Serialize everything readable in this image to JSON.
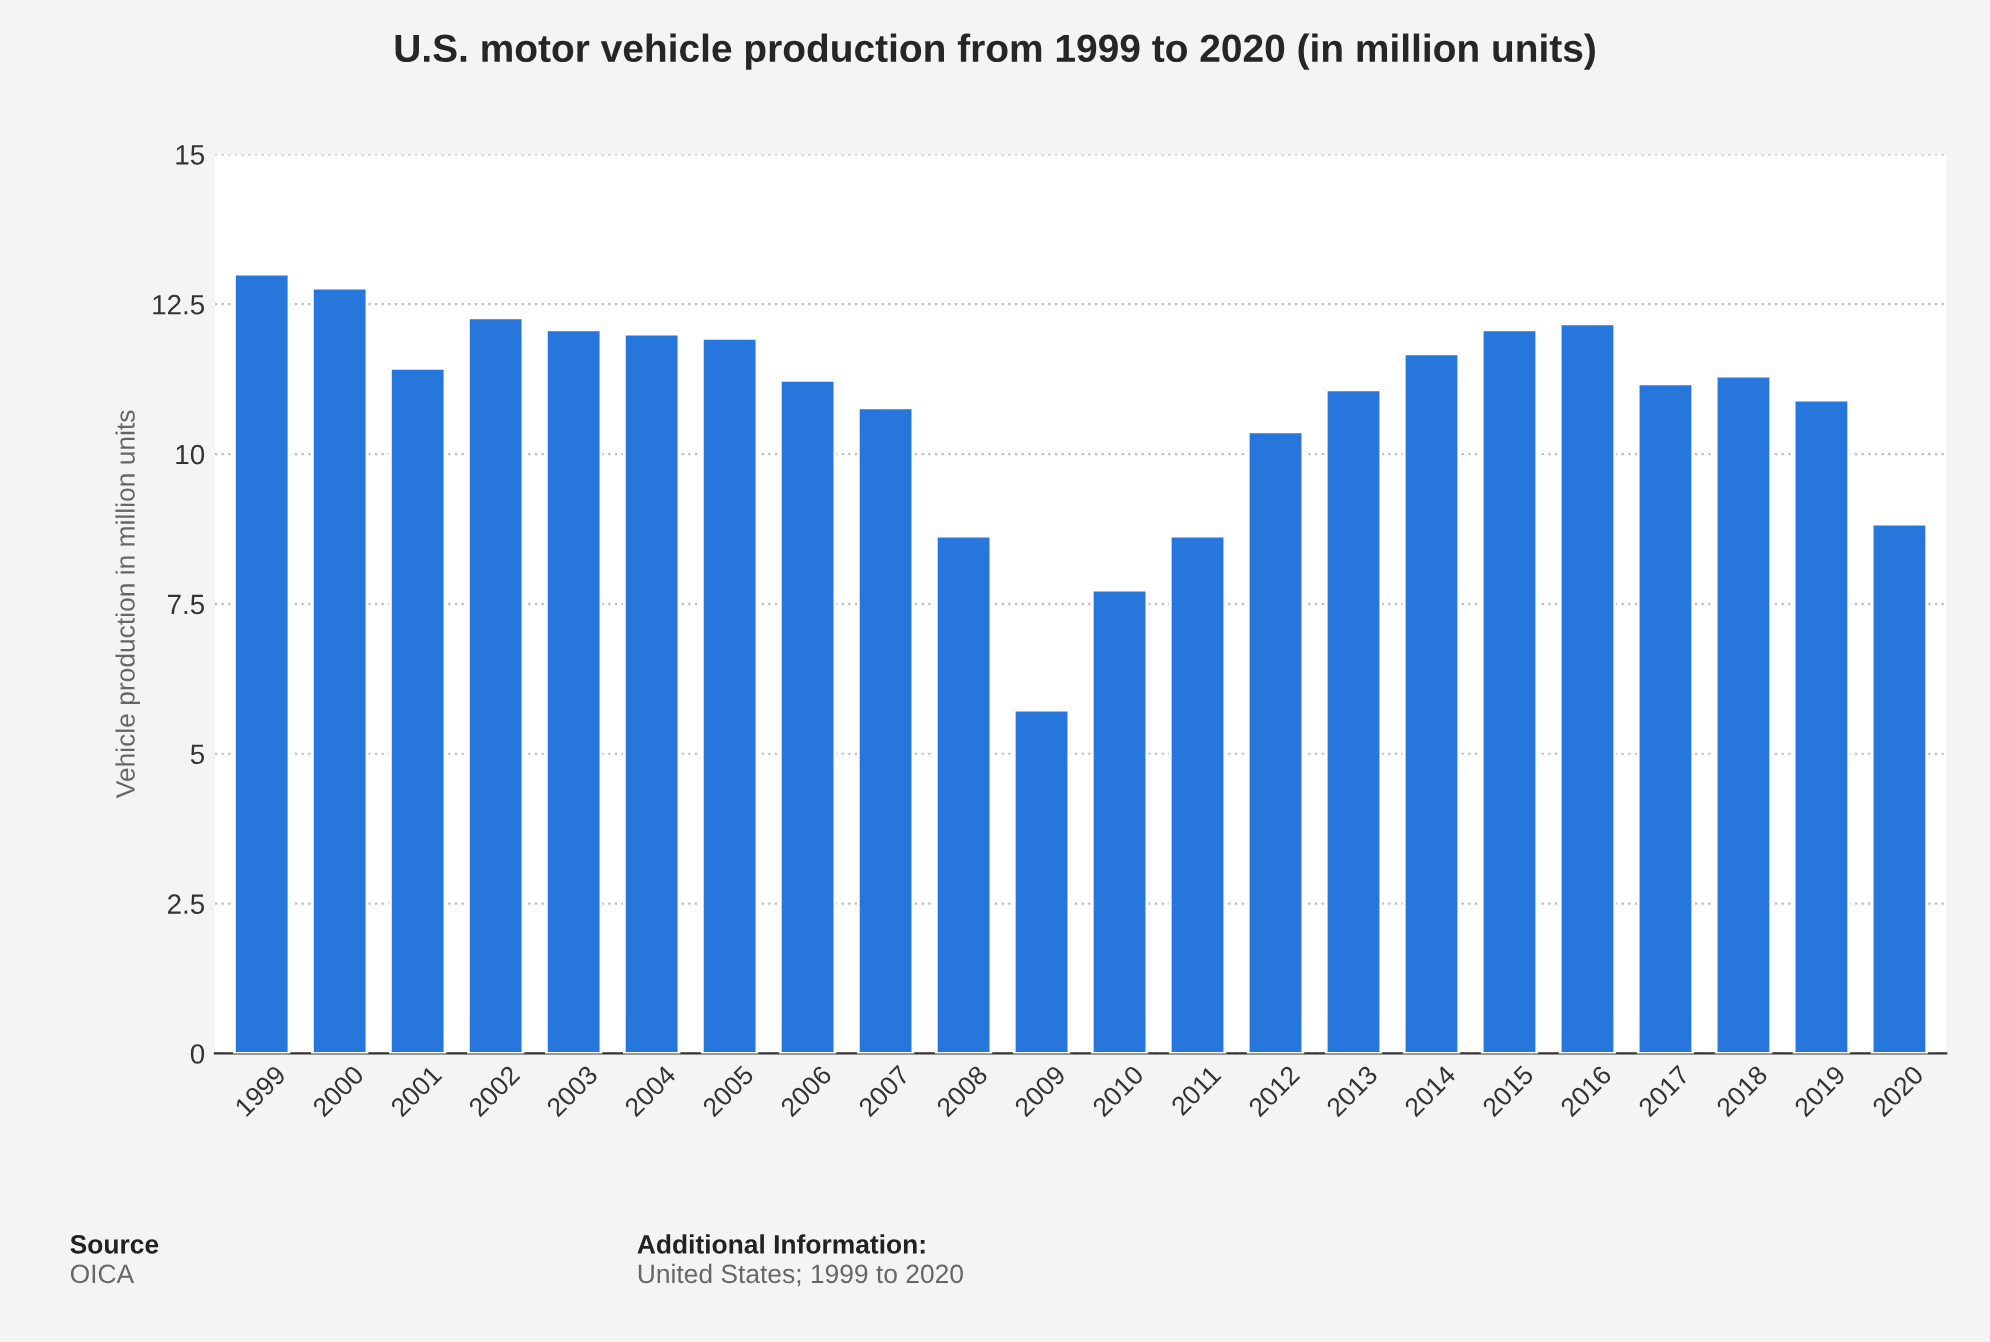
{
  "chart_data": {
    "type": "bar",
    "title": "U.S. motor vehicle production from 1999 to 2020 (in million units)",
    "ylabel": "Vehicle production in million units",
    "categories": [
      "1999",
      "2000",
      "2001",
      "2002",
      "2003",
      "2004",
      "2005",
      "2006",
      "2007",
      "2008",
      "2009",
      "2010",
      "2011",
      "2012",
      "2013",
      "2014",
      "2015",
      "2016",
      "2017",
      "2018",
      "2019",
      "2020"
    ],
    "values": [
      13.0,
      12.77,
      11.43,
      12.27,
      12.07,
      12.0,
      11.93,
      11.23,
      10.77,
      8.63,
      5.73,
      7.73,
      8.63,
      10.37,
      11.07,
      11.67,
      12.07,
      12.17,
      11.17,
      11.3,
      10.9,
      8.83
    ],
    "color": "#2776dc",
    "ylim": [
      0,
      15
    ],
    "yticks": [
      0,
      2.5,
      5,
      7.5,
      10,
      12.5,
      15
    ],
    "grid": "y",
    "annotations": [
      "Source",
      "OICA",
      "Additional Information:",
      "United States; 1999 to 2020"
    ]
  }
}
